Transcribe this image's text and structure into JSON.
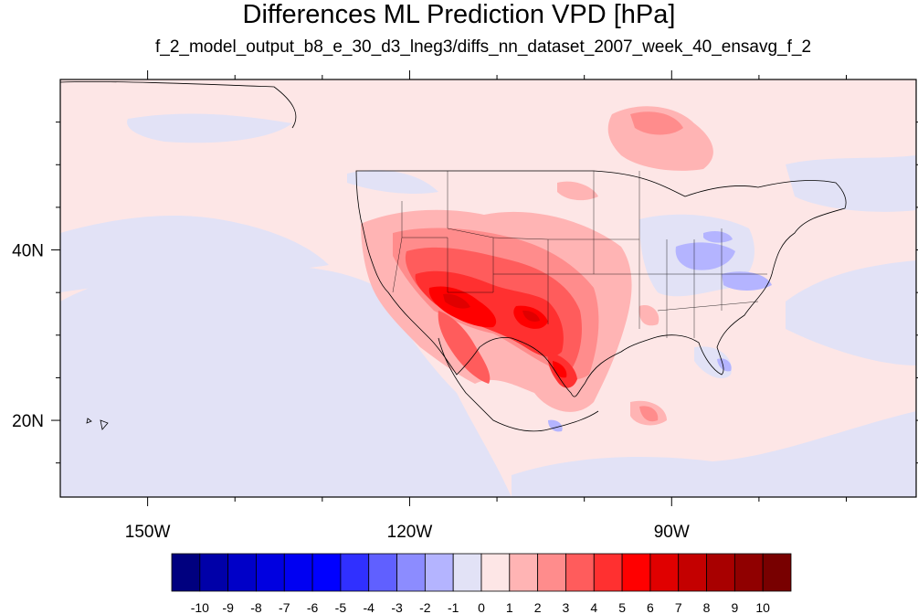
{
  "title": "Differences ML Prediction VPD [hPa]",
  "subtitle": "f_2_model_output_b8_e_30_d3_lneg3/diffs_nn_dataset_2007_week_40_ensavg_f_2",
  "map": {
    "lon_range": [
      -160,
      -62
    ],
    "lat_range": [
      11,
      60
    ],
    "lon_ticks": [
      {
        "value": -150,
        "label": "150W"
      },
      {
        "value": -120,
        "label": "120W"
      },
      {
        "value": -90,
        "label": "90W"
      }
    ],
    "lat_ticks": [
      {
        "value": 40,
        "label": "40N"
      },
      {
        "value": 20,
        "label": "20N"
      }
    ],
    "minor_lon_ticks": [
      -140,
      -130,
      -110,
      -100,
      -80,
      -70
    ],
    "minor_lat_ticks": [
      15,
      25,
      30,
      35,
      45,
      50,
      55
    ],
    "background_color": "#fde6e6"
  },
  "colorbar": {
    "labels": [
      "-10",
      "-9",
      "-8",
      "-7",
      "-6",
      "-5",
      "-4",
      "-3",
      "-2",
      "-1",
      "0",
      "1",
      "2",
      "3",
      "4",
      "5",
      "6",
      "7",
      "8",
      "9",
      "10"
    ],
    "colors": [
      "#00007f",
      "#0000a8",
      "#0000c8",
      "#0000e0",
      "#0000f2",
      "#0000ff",
      "#3030ff",
      "#6060ff",
      "#8c8cff",
      "#b4b4ff",
      "#e2e2f6",
      "#fde6e6",
      "#ffb4b4",
      "#ff8c8c",
      "#ff5c5c",
      "#ff3030",
      "#ff0000",
      "#e00000",
      "#c40000",
      "#a80000",
      "#900000",
      "#780000"
    ]
  }
}
